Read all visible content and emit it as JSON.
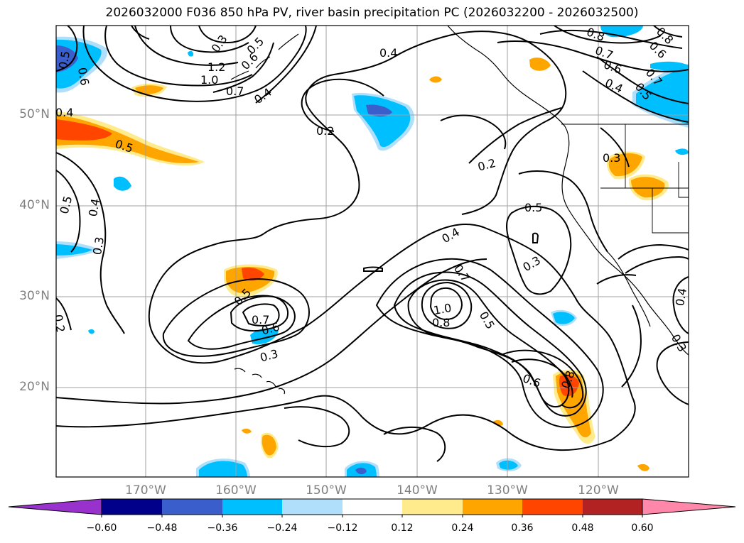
{
  "title": "2026032000 F036 850 hPa PV, river basin precipitation PC (2026032200 - 2026032500)",
  "axes": {
    "lat_labels": [
      "50°N",
      "40°N",
      "30°N",
      "20°N"
    ],
    "lon_labels": [
      "170°W",
      "160°W",
      "150°W",
      "140°W",
      "130°W",
      "120°W"
    ]
  },
  "contour_labels": [
    "0.5",
    "0.6",
    "0.4",
    "0.3",
    "1.2",
    "1.0",
    "0.7",
    "0.4",
    "0.6",
    "0.5",
    "0.2",
    "0.2",
    "0.4",
    "0.8",
    "0.7",
    "0.6",
    "0.4",
    "0.5",
    "0.8",
    "0.6",
    "0.7",
    "0.5",
    "0.3",
    "0.5",
    "0.3",
    "0.4",
    "0.7",
    "1.0",
    "0.8",
    "0.5",
    "0.5",
    "0.7",
    "0.6",
    "0.3",
    "0.6",
    "0.8",
    "0.2",
    "0.4",
    "0.3",
    "0.3"
  ],
  "colorbar": {
    "ticks": [
      "−0.60",
      "−0.48",
      "−0.36",
      "−0.24",
      "−0.12",
      "0.12",
      "0.24",
      "0.36",
      "0.48",
      "0.60"
    ],
    "colors": [
      "#9932cc",
      "#00008b",
      "#3a5fcd",
      "#00bfff",
      "#afdffa",
      "#ffffff",
      "#ffeb8c",
      "#ffa500",
      "#ff4500",
      "#b22222",
      "#ff88aa"
    ]
  },
  "colors": {
    "contour": "#000000",
    "grid": "#a0a0a0",
    "coast": "#000000"
  }
}
